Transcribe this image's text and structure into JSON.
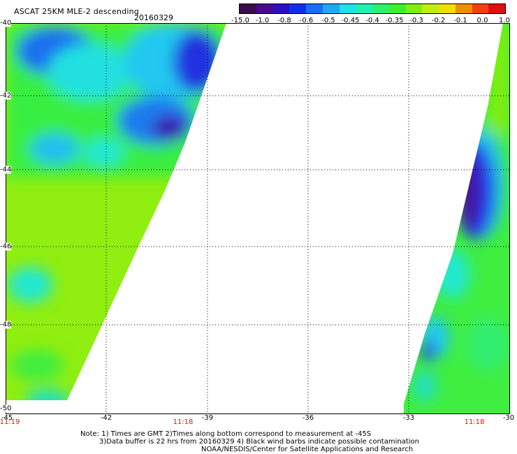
{
  "header": {
    "title": "ASCAT 25KM MLE-2 descending",
    "date": "20160329"
  },
  "colorbar": {
    "colors": [
      "#3a0a4a",
      "#4a0a8a",
      "#2a10c0",
      "#1030e8",
      "#1e6cf0",
      "#20a8f0",
      "#20e0e8",
      "#20f0b0",
      "#30ee70",
      "#40ee30",
      "#80ee10",
      "#c0ee10",
      "#f0e000",
      "#f09000",
      "#f04010",
      "#e01010"
    ],
    "labels": [
      "-15.0",
      "-1.0",
      "-0.8",
      "-0.6",
      "-0.5",
      "-0.45",
      "-0.4",
      "-0.35",
      "-0.3",
      "-0.2",
      "-0.1",
      "0.0",
      "1.0"
    ]
  },
  "map": {
    "lat_labels": [
      "-40",
      "-42",
      "-44",
      "-46",
      "-48",
      "-50"
    ],
    "lon_labels": [
      "-45",
      "-42",
      "-39",
      "-36",
      "-33",
      "-30"
    ],
    "times": [
      "11:19",
      "11:18",
      "11:18"
    ]
  },
  "notes": {
    "line1": "Note: 1) Times are GMT 2)Times along bottom correspond to measurement at -45S",
    "line2": "3)Data buffer is 22 hrs from 20160329 4) Black wind barbs indicate possible contamination",
    "line3": "NOAA/NESDIS/Center for Satellite Applications and Research"
  }
}
